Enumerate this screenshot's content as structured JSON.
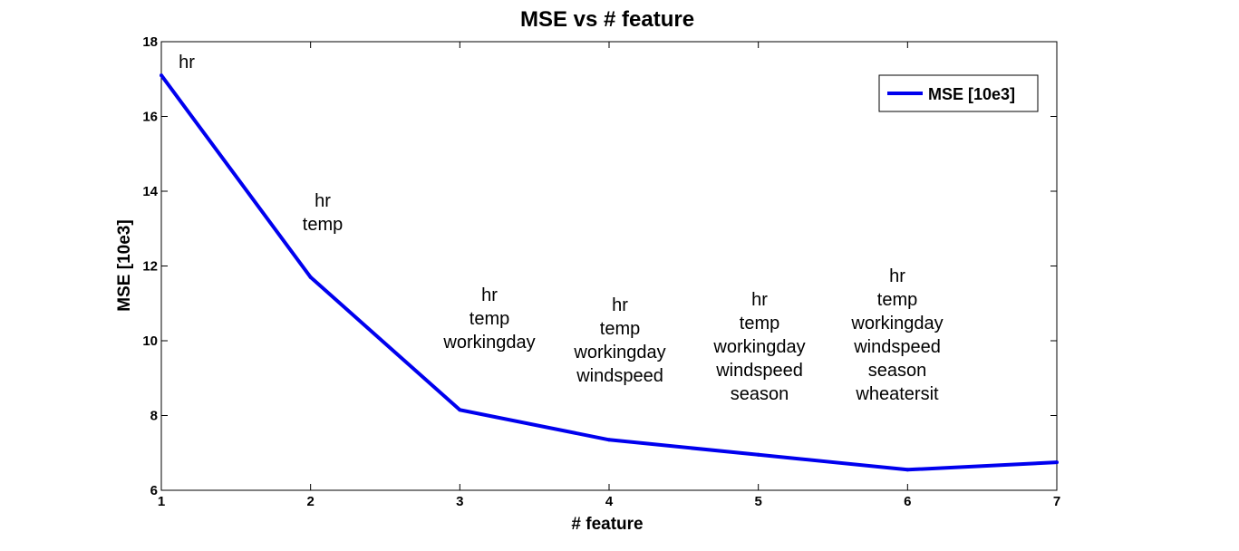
{
  "chart_data": {
    "type": "line",
    "title": "MSE vs # feature",
    "xlabel": "# feature",
    "ylabel": "MSE [10e3]",
    "xlim": [
      1,
      7
    ],
    "ylim": [
      6,
      18
    ],
    "xticks": [
      1,
      2,
      3,
      4,
      5,
      6,
      7
    ],
    "yticks": [
      6,
      8,
      10,
      12,
      14,
      16,
      18
    ],
    "grid": false,
    "legend_position": "top-right",
    "series": [
      {
        "name": "MSE [10e3]",
        "color": "#0000ee",
        "x": [
          1,
          2,
          3,
          4,
          5,
          6,
          7
        ],
        "y": [
          17.1,
          11.7,
          8.15,
          7.35,
          6.95,
          6.55,
          6.75
        ]
      }
    ],
    "annotations": [
      {
        "x": 1,
        "lines": [
          "hr"
        ]
      },
      {
        "x": 2,
        "lines": [
          "hr",
          "temp"
        ]
      },
      {
        "x": 3,
        "lines": [
          "hr",
          "temp",
          "workingday"
        ]
      },
      {
        "x": 4,
        "lines": [
          "hr",
          "temp",
          "workingday",
          "windspeed"
        ]
      },
      {
        "x": 5,
        "lines": [
          "hr",
          "temp",
          "workingday",
          "windspeed",
          "season"
        ]
      },
      {
        "x": 6,
        "lines": [
          "hr",
          "temp",
          "workingday",
          "windspeed",
          "season",
          "wheatersit"
        ]
      }
    ]
  }
}
